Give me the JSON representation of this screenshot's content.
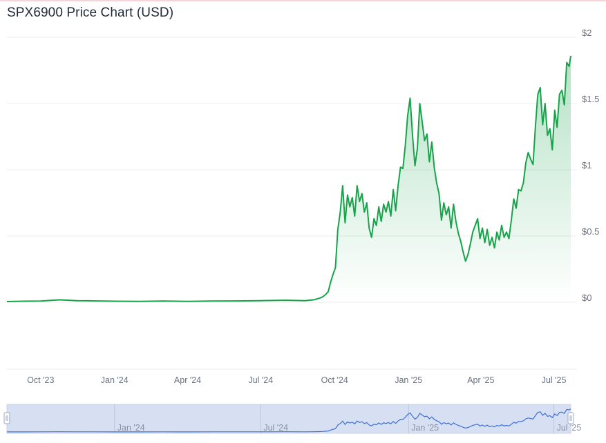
{
  "header": {
    "title": "SPX6900 Price Chart (USD)"
  },
  "chart_data": {
    "type": "area",
    "title": "SPX6900 Price Chart (USD)",
    "xlabel": "",
    "ylabel": "",
    "ylim": [
      0,
      2
    ],
    "xlim": [
      "2023-08-20",
      "2025-07-22"
    ],
    "y_ticks": [
      "$0",
      "$0.5",
      "$1",
      "$1.5",
      "$2"
    ],
    "x_ticks": [
      {
        "label": "Oct '23",
        "date": "2023-10-01"
      },
      {
        "label": "Jan '24",
        "date": "2024-01-01"
      },
      {
        "label": "Apr '24",
        "date": "2024-04-01"
      },
      {
        "label": "Jul '24",
        "date": "2024-07-01"
      },
      {
        "label": "Oct '24",
        "date": "2024-10-01"
      },
      {
        "label": "Jan '25",
        "date": "2025-01-01"
      },
      {
        "label": "Apr '25",
        "date": "2025-04-01"
      },
      {
        "label": "Jul '25",
        "date": "2025-07-01"
      }
    ],
    "grid": true,
    "colors": {
      "line": "#16a34a",
      "fill_top": "#16a34a",
      "navigator_line": "#3b6fd6",
      "navigator_bg": "#d7e0f2"
    },
    "series": [
      {
        "x": [
          "2023-08-20",
          "2023-09-10",
          "2023-10-01",
          "2023-10-25",
          "2023-11-15",
          "2023-12-10",
          "2024-01-01",
          "2024-02-01",
          "2024-03-01",
          "2024-04-01",
          "2024-05-01",
          "2024-06-01",
          "2024-07-01",
          "2024-08-01",
          "2024-08-25",
          "2024-09-05",
          "2024-09-12",
          "2024-09-16",
          "2024-09-20",
          "2024-09-23",
          "2024-09-26",
          "2024-09-29",
          "2024-10-02",
          "2024-10-05",
          "2024-10-08",
          "2024-10-11",
          "2024-10-14",
          "2024-10-17",
          "2024-10-20",
          "2024-10-23",
          "2024-10-26",
          "2024-10-29",
          "2024-11-01",
          "2024-11-04",
          "2024-11-07",
          "2024-11-10",
          "2024-11-13",
          "2024-11-16",
          "2024-11-19",
          "2024-11-22",
          "2024-11-25",
          "2024-11-28",
          "2024-12-01",
          "2024-12-04",
          "2024-12-07",
          "2024-12-10",
          "2024-12-13",
          "2024-12-16",
          "2024-12-19",
          "2024-12-22",
          "2024-12-25",
          "2024-12-28",
          "2024-12-31",
          "2025-01-03",
          "2025-01-06",
          "2025-01-09",
          "2025-01-12",
          "2025-01-15",
          "2025-01-18",
          "2025-01-21",
          "2025-01-24",
          "2025-01-27",
          "2025-01-30",
          "2025-02-02",
          "2025-02-05",
          "2025-02-08",
          "2025-02-11",
          "2025-02-14",
          "2025-02-17",
          "2025-02-20",
          "2025-02-23",
          "2025-02-26",
          "2025-03-01",
          "2025-03-04",
          "2025-03-07",
          "2025-03-10",
          "2025-03-13",
          "2025-03-16",
          "2025-03-19",
          "2025-03-22",
          "2025-03-25",
          "2025-03-28",
          "2025-03-31",
          "2025-04-03",
          "2025-04-06",
          "2025-04-09",
          "2025-04-12",
          "2025-04-15",
          "2025-04-18",
          "2025-04-21",
          "2025-04-24",
          "2025-04-27",
          "2025-04-30",
          "2025-05-03",
          "2025-05-06",
          "2025-05-09",
          "2025-05-12",
          "2025-05-15",
          "2025-05-18",
          "2025-05-21",
          "2025-05-24",
          "2025-05-27",
          "2025-05-30",
          "2025-06-02",
          "2025-06-05",
          "2025-06-08",
          "2025-06-11",
          "2025-06-14",
          "2025-06-17",
          "2025-06-20",
          "2025-06-23",
          "2025-06-26",
          "2025-06-29",
          "2025-07-02",
          "2025-07-05",
          "2025-07-08",
          "2025-07-11",
          "2025-07-14",
          "2025-07-17",
          "2025-07-20",
          "2025-07-22"
        ],
        "y": [
          0.005,
          0.008,
          0.009,
          0.018,
          0.012,
          0.01,
          0.008,
          0.007,
          0.009,
          0.007,
          0.009,
          0.01,
          0.012,
          0.015,
          0.012,
          0.018,
          0.03,
          0.04,
          0.06,
          0.08,
          0.15,
          0.21,
          0.26,
          0.55,
          0.68,
          0.88,
          0.6,
          0.81,
          0.72,
          0.79,
          0.65,
          0.88,
          0.76,
          0.82,
          0.68,
          0.75,
          0.56,
          0.49,
          0.63,
          0.58,
          0.72,
          0.61,
          0.74,
          0.68,
          0.76,
          0.65,
          0.85,
          0.69,
          0.88,
          1.02,
          1.01,
          1.18,
          1.41,
          1.54,
          1.26,
          1.03,
          1.16,
          1.5,
          1.36,
          1.22,
          1.27,
          1.06,
          1.21,
          1.02,
          0.9,
          0.82,
          0.62,
          0.75,
          0.66,
          0.72,
          0.56,
          0.74,
          0.61,
          0.52,
          0.46,
          0.38,
          0.31,
          0.36,
          0.44,
          0.53,
          0.58,
          0.63,
          0.48,
          0.56,
          0.45,
          0.55,
          0.43,
          0.49,
          0.41,
          0.53,
          0.47,
          0.58,
          0.49,
          0.53,
          0.48,
          0.62,
          0.78,
          0.71,
          0.85,
          0.84,
          0.9,
          1.05,
          1.13,
          1.08,
          1.04,
          1.33,
          1.57,
          1.62,
          1.34,
          1.5,
          1.26,
          1.31,
          1.15,
          1.45,
          1.32,
          1.57,
          1.6,
          1.49,
          1.81,
          1.78,
          1.86
        ]
      }
    ],
    "navigator": {
      "x_ticks": [
        "Jan '24",
        "Jul '24",
        "Jan '25",
        "Jul '25"
      ]
    }
  }
}
